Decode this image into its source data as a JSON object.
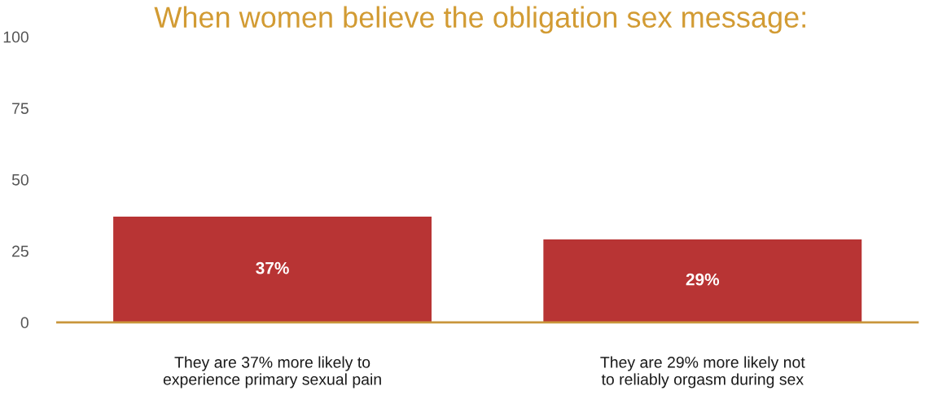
{
  "chart_data": {
    "type": "bar",
    "title": "When women believe the obligation sex message:",
    "categories": [
      "They are 37% more likely to experience primary sexual pain",
      "They are 29% more likely not to reliably orgasm during sex"
    ],
    "values": [
      37,
      29
    ],
    "value_labels": [
      "37%",
      "29%"
    ],
    "color": "#b83434",
    "ylim": [
      0,
      100
    ],
    "yticks": [
      0,
      25,
      50,
      75,
      100
    ],
    "grid": false,
    "legend": false
  }
}
